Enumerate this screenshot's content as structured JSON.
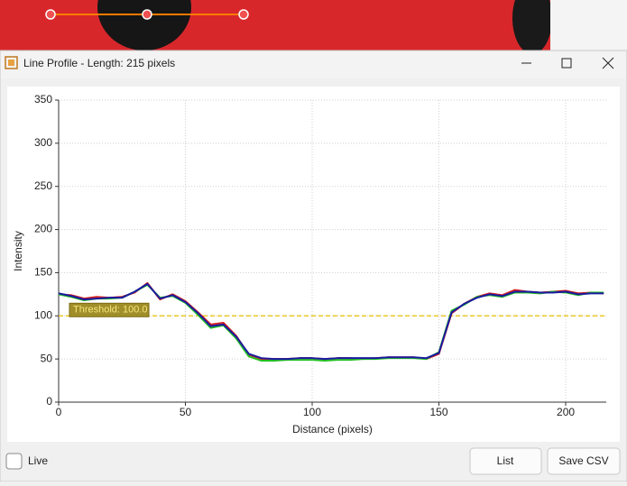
{
  "window": {
    "title": "Line Profile - Length: 215 pixels"
  },
  "chart_data": {
    "type": "line",
    "xlabel": "Distance (pixels)",
    "ylabel": "Intensity",
    "x": [
      0,
      5,
      10,
      15,
      20,
      25,
      30,
      35,
      40,
      45,
      50,
      55,
      60,
      65,
      70,
      75,
      80,
      85,
      90,
      95,
      100,
      105,
      110,
      115,
      120,
      125,
      130,
      135,
      140,
      145,
      150,
      155,
      160,
      165,
      170,
      175,
      180,
      185,
      190,
      195,
      200,
      205,
      210,
      215
    ],
    "series": [
      {
        "color": "#d62020",
        "values": [
          125,
          124,
          120,
          122,
          121,
          122,
          127,
          138,
          119,
          125,
          117,
          104,
          90,
          92,
          77,
          55,
          50,
          50,
          50,
          51,
          51,
          50,
          51,
          51,
          50,
          51,
          52,
          52,
          52,
          50,
          56,
          103,
          114,
          122,
          126,
          124,
          130,
          128,
          127,
          128,
          129,
          126,
          127,
          126
        ]
      },
      {
        "color": "#22c022",
        "values": [
          125,
          122,
          118,
          120,
          120,
          121,
          128,
          136,
          121,
          123,
          115,
          101,
          86,
          89,
          74,
          53,
          48,
          48,
          49,
          49,
          49,
          48,
          49,
          49,
          50,
          50,
          51,
          51,
          51,
          50,
          58,
          106,
          113,
          122,
          124,
          122,
          127,
          127,
          126,
          128,
          127,
          124,
          127,
          127
        ]
      },
      {
        "color": "#1a1aa0",
        "values": [
          126,
          123,
          119,
          120,
          121,
          121,
          128,
          137,
          120,
          124,
          116,
          103,
          88,
          90,
          76,
          56,
          51,
          50,
          50,
          51,
          51,
          50,
          51,
          51,
          51,
          51,
          52,
          52,
          52,
          51,
          57,
          104,
          114,
          121,
          125,
          123,
          128,
          128,
          127,
          127,
          128,
          125,
          126,
          126
        ]
      }
    ],
    "threshold": {
      "value": 100,
      "label": "Threshold: 100.0",
      "color": "#e8c000"
    },
    "xlim": [
      0,
      216
    ],
    "ylim": [
      0,
      350
    ],
    "xticks": [
      0,
      50,
      100,
      150,
      200
    ],
    "yticks": [
      0,
      50,
      100,
      150,
      200,
      250,
      300,
      350
    ],
    "grid": true
  },
  "controls": {
    "live": "Live",
    "list": "List",
    "save": "Save CSV"
  }
}
